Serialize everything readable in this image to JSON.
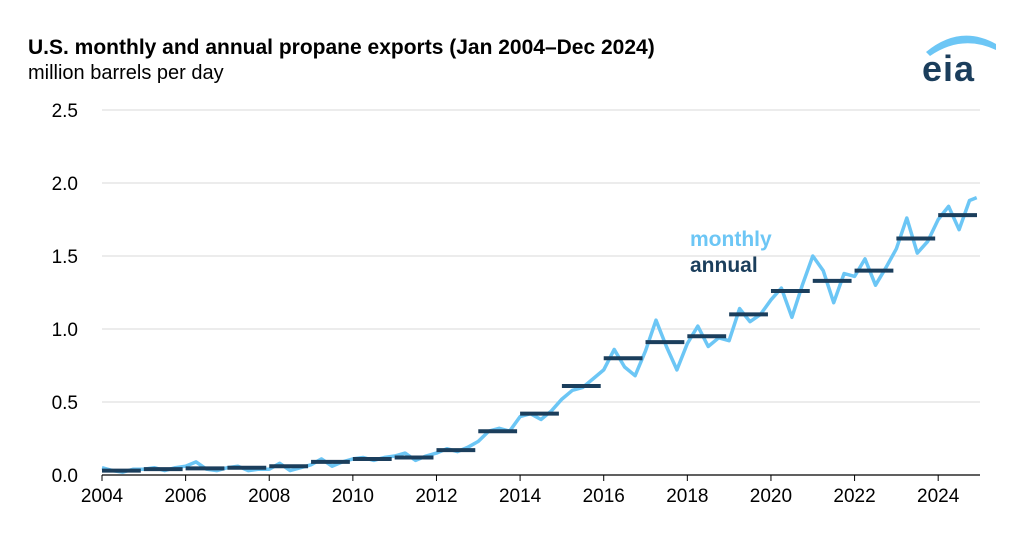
{
  "colors": {
    "monthly": "#6cc6f5",
    "annual": "#1b3e5c",
    "grid": "#d9d9d9",
    "axis": "#000000"
  },
  "logo": {
    "text": "eia",
    "icon": "eia-logo-arc-icon"
  },
  "chart_data": {
    "type": "line",
    "title": "U.S. monthly and annual propane exports (Jan 2004–Dec 2024)",
    "subtitle": "million barrels per day",
    "xlim": [
      2004,
      2025
    ],
    "ylim": [
      0,
      2.5
    ],
    "y_ticks": [
      "0.0",
      "0.5",
      "1.0",
      "1.5",
      "2.0",
      "2.5"
    ],
    "x_ticks": [
      "2004",
      "2006",
      "2008",
      "2010",
      "2012",
      "2014",
      "2016",
      "2018",
      "2020",
      "2022",
      "2024"
    ],
    "grid": "horizontal",
    "legend": "inline labels, center-right",
    "series": [
      {
        "name": "monthly",
        "style": "line",
        "x": [
          2004.0,
          2004.25,
          2004.5,
          2004.75,
          2005.0,
          2005.25,
          2005.5,
          2005.75,
          2006.0,
          2006.25,
          2006.5,
          2006.75,
          2007.0,
          2007.25,
          2007.5,
          2007.75,
          2008.0,
          2008.25,
          2008.5,
          2008.75,
          2009.0,
          2009.25,
          2009.5,
          2009.75,
          2010.0,
          2010.25,
          2010.5,
          2010.75,
          2011.0,
          2011.25,
          2011.5,
          2011.75,
          2012.0,
          2012.25,
          2012.5,
          2012.75,
          2013.0,
          2013.25,
          2013.5,
          2013.75,
          2014.0,
          2014.25,
          2014.5,
          2014.75,
          2015.0,
          2015.25,
          2015.5,
          2015.75,
          2016.0,
          2016.25,
          2016.5,
          2016.75,
          2017.0,
          2017.25,
          2017.5,
          2017.75,
          2018.0,
          2018.25,
          2018.5,
          2018.75,
          2019.0,
          2019.25,
          2019.5,
          2019.75,
          2020.0,
          2020.25,
          2020.5,
          2020.75,
          2021.0,
          2021.25,
          2021.5,
          2021.75,
          2022.0,
          2022.25,
          2022.5,
          2022.75,
          2023.0,
          2023.25,
          2023.5,
          2023.75,
          2024.0,
          2024.25,
          2024.5,
          2024.75,
          2024.92
        ],
        "values": [
          0.05,
          0.03,
          0.02,
          0.04,
          0.04,
          0.05,
          0.03,
          0.05,
          0.06,
          0.09,
          0.04,
          0.03,
          0.05,
          0.06,
          0.03,
          0.04,
          0.04,
          0.08,
          0.03,
          0.05,
          0.07,
          0.11,
          0.06,
          0.09,
          0.11,
          0.12,
          0.1,
          0.12,
          0.13,
          0.15,
          0.1,
          0.13,
          0.15,
          0.18,
          0.16,
          0.19,
          0.23,
          0.3,
          0.32,
          0.3,
          0.4,
          0.42,
          0.38,
          0.44,
          0.52,
          0.58,
          0.6,
          0.66,
          0.72,
          0.86,
          0.74,
          0.68,
          0.85,
          1.06,
          0.88,
          0.72,
          0.9,
          1.02,
          0.88,
          0.94,
          0.92,
          1.14,
          1.05,
          1.1,
          1.2,
          1.28,
          1.08,
          1.3,
          1.5,
          1.4,
          1.18,
          1.38,
          1.36,
          1.48,
          1.3,
          1.42,
          1.55,
          1.76,
          1.52,
          1.6,
          1.75,
          1.84,
          1.68,
          1.88,
          1.9
        ]
      },
      {
        "name": "annual",
        "style": "step",
        "years": [
          2004,
          2005,
          2006,
          2007,
          2008,
          2009,
          2010,
          2011,
          2012,
          2013,
          2014,
          2015,
          2016,
          2017,
          2018,
          2019,
          2020,
          2021,
          2022,
          2023,
          2024
        ],
        "values": [
          0.03,
          0.04,
          0.045,
          0.05,
          0.06,
          0.09,
          0.11,
          0.12,
          0.17,
          0.3,
          0.42,
          0.61,
          0.8,
          0.91,
          0.95,
          1.1,
          1.26,
          1.33,
          1.4,
          1.62,
          1.78
        ]
      }
    ]
  }
}
